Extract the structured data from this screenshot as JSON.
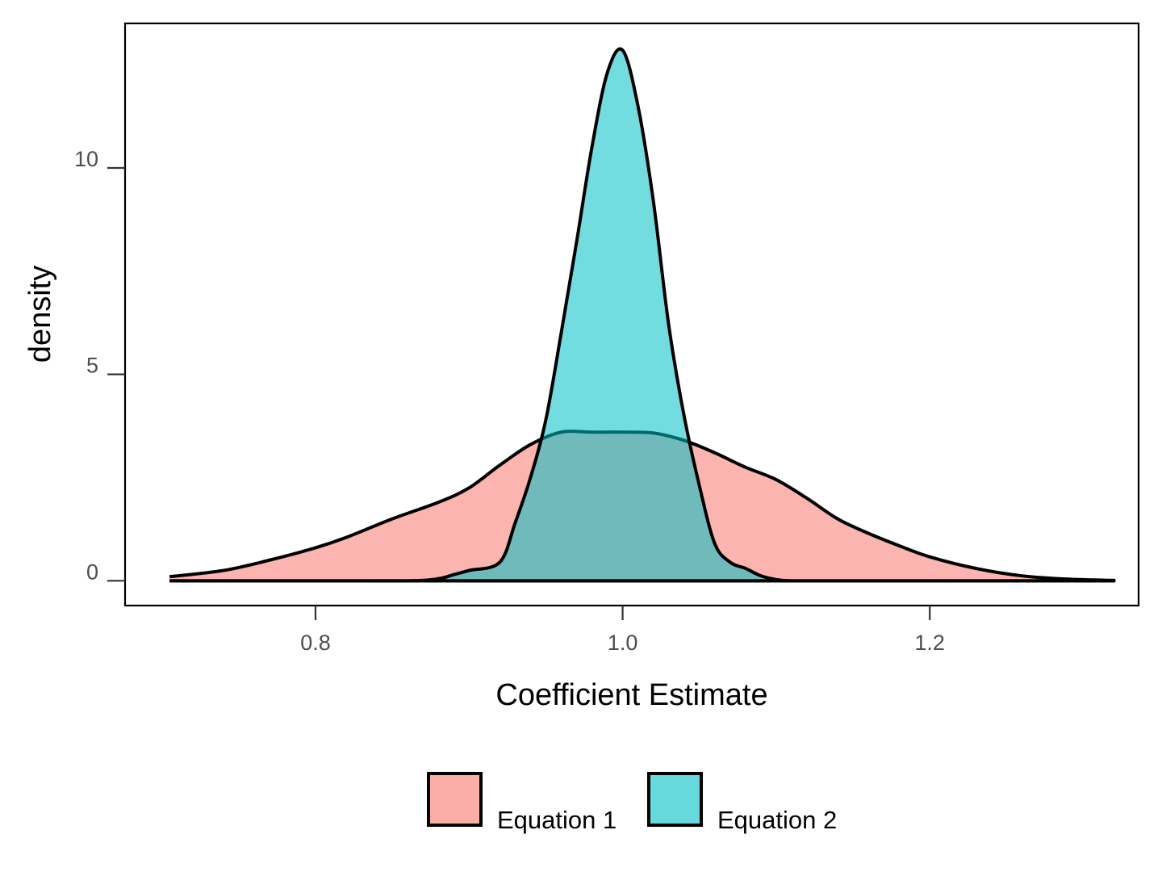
{
  "chart_data": {
    "type": "area",
    "subtype": "density",
    "title": "",
    "xlabel": "Coefficient Estimate",
    "ylabel": "density",
    "xlim": [
      0.676,
      1.336
    ],
    "ylim": [
      -0.6,
      13.5
    ],
    "x_ticks": [
      {
        "value": 0.8,
        "label": "0.8"
      },
      {
        "value": 1.0,
        "label": "1.0"
      },
      {
        "value": 1.2,
        "label": "1.2"
      }
    ],
    "y_ticks": [
      {
        "value": 0,
        "label": "0"
      },
      {
        "value": 5,
        "label": "5"
      },
      {
        "value": 10,
        "label": "10"
      }
    ],
    "grid": false,
    "legend_position": "bottom",
    "series": [
      {
        "name": "Equation 1",
        "color": "#F8766D",
        "x": [
          0.705,
          0.74,
          0.77,
          0.8,
          0.82,
          0.85,
          0.88,
          0.9,
          0.92,
          0.94,
          0.96,
          0.98,
          1.0,
          1.02,
          1.04,
          1.06,
          1.08,
          1.1,
          1.12,
          1.14,
          1.16,
          1.18,
          1.2,
          1.23,
          1.26,
          1.29,
          1.32
        ],
        "y": [
          0.1,
          0.25,
          0.5,
          0.8,
          1.05,
          1.5,
          1.9,
          2.25,
          2.8,
          3.3,
          3.6,
          3.6,
          3.6,
          3.58,
          3.4,
          3.1,
          2.75,
          2.45,
          2.0,
          1.5,
          1.15,
          0.85,
          0.58,
          0.3,
          0.12,
          0.04,
          0.01
        ]
      },
      {
        "name": "Equation 2",
        "color": "#00BFC4",
        "x": [
          0.705,
          0.8,
          0.86,
          0.88,
          0.89,
          0.9,
          0.92,
          0.93,
          0.94,
          0.95,
          0.96,
          0.97,
          0.98,
          0.99,
          1.0,
          1.01,
          1.02,
          1.03,
          1.04,
          1.05,
          1.06,
          1.07,
          1.08,
          1.09,
          1.1,
          1.11,
          1.13,
          1.2,
          1.32
        ],
        "y": [
          0.0,
          0.0,
          0.0,
          0.05,
          0.15,
          0.25,
          0.45,
          1.4,
          2.5,
          3.9,
          6.0,
          8.2,
          10.5,
          12.3,
          12.85,
          11.5,
          9.2,
          6.2,
          4.0,
          2.3,
          0.9,
          0.45,
          0.3,
          0.12,
          0.03,
          0.0,
          0.0,
          0.0,
          0.0
        ]
      }
    ]
  }
}
